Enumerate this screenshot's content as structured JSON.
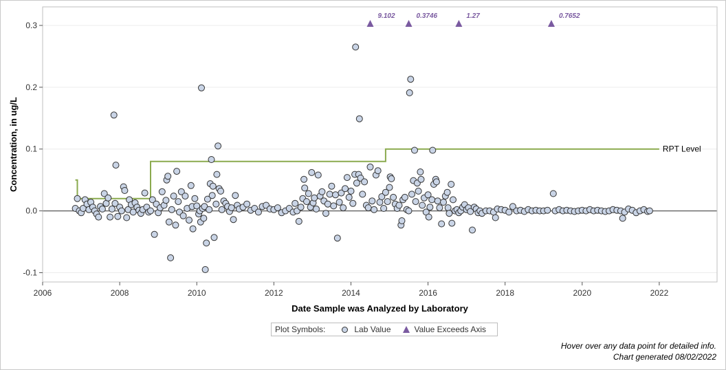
{
  "chart_data": {
    "type": "scatter",
    "xlabel": "Date Sample was Analyzed by Laboratory",
    "ylabel": "Concentration, in ug/L",
    "xlim": [
      2006,
      2023.5
    ],
    "ylim": [
      -0.115,
      0.33
    ],
    "x_ticks": [
      "2006",
      "2008",
      "2010",
      "2012",
      "2014",
      "2016",
      "2018",
      "2020",
      "2022"
    ],
    "y_ticks": [
      "0.3",
      "0.2",
      "0.1",
      "0.0",
      "-0.1"
    ],
    "grid": "horizontal",
    "reference_line": {
      "label": "RPT Level",
      "color": "#8aaa4e",
      "steps": [
        [
          2006.85,
          0.05
        ],
        [
          2006.9,
          0.02
        ],
        [
          2008.8,
          0.08
        ],
        [
          2014.9,
          0.1
        ],
        [
          2022.0,
          0.1
        ]
      ]
    },
    "exceeds_axis": {
      "color": "#7a5aa0",
      "points": [
        {
          "x": 2014.5,
          "label": "9.102"
        },
        {
          "x": 2015.5,
          "label": "0.3746"
        },
        {
          "x": 2016.8,
          "label": "1.27"
        },
        {
          "x": 2019.2,
          "label": "0.7652"
        }
      ]
    },
    "series": [
      {
        "marker_fill": "#c9d4e6",
        "marker_edge": "#333333",
        "points": [
          [
            2006.85,
            0.004
          ],
          [
            2006.9,
            0.02
          ],
          [
            2006.95,
            0.0
          ],
          [
            2007.0,
            -0.003
          ],
          [
            2007.05,
            0.004
          ],
          [
            2007.1,
            0.018
          ],
          [
            2007.15,
            0.011
          ],
          [
            2007.2,
            0.002
          ],
          [
            2007.25,
            0.014
          ],
          [
            2007.3,
            0.006
          ],
          [
            2007.35,
            0.0
          ],
          [
            2007.4,
            -0.005
          ],
          [
            2007.45,
            -0.01
          ],
          [
            2007.5,
            0.007
          ],
          [
            2007.55,
            0.003
          ],
          [
            2007.6,
            0.028
          ],
          [
            2007.65,
            0.012
          ],
          [
            2007.7,
            0.021
          ],
          [
            2007.75,
            -0.01
          ],
          [
            2007.8,
            0.003
          ],
          [
            2007.85,
            0.155
          ],
          [
            2007.88,
            0.012
          ],
          [
            2007.9,
            0.074
          ],
          [
            2007.95,
            -0.009
          ],
          [
            2008.0,
            0.006
          ],
          [
            2008.05,
            0.0
          ],
          [
            2008.1,
            0.039
          ],
          [
            2008.13,
            0.033
          ],
          [
            2008.18,
            -0.011
          ],
          [
            2008.22,
            0.002
          ],
          [
            2008.25,
            0.018
          ],
          [
            2008.3,
            0.01
          ],
          [
            2008.35,
            -0.002
          ],
          [
            2008.4,
            0.013
          ],
          [
            2008.45,
            0.006
          ],
          [
            2008.5,
            0.001
          ],
          [
            2008.55,
            -0.004
          ],
          [
            2008.6,
            0.002
          ],
          [
            2008.65,
            0.029
          ],
          [
            2008.7,
            0.006
          ],
          [
            2008.75,
            -0.002
          ],
          [
            2008.8,
            0.0
          ],
          [
            2008.85,
            0.018
          ],
          [
            2008.9,
            -0.038
          ],
          [
            2008.95,
            0.011
          ],
          [
            2009.0,
            -0.003
          ],
          [
            2009.05,
            0.005
          ],
          [
            2009.1,
            0.031
          ],
          [
            2009.15,
            0.009
          ],
          [
            2009.2,
            0.017
          ],
          [
            2009.22,
            0.05
          ],
          [
            2009.25,
            0.056
          ],
          [
            2009.28,
            -0.018
          ],
          [
            2009.32,
            -0.076
          ],
          [
            2009.35,
            0.002
          ],
          [
            2009.4,
            0.024
          ],
          [
            2009.45,
            -0.023
          ],
          [
            2009.48,
            0.064
          ],
          [
            2009.52,
            0.015
          ],
          [
            2009.55,
            -0.002
          ],
          [
            2009.6,
            0.031
          ],
          [
            2009.65,
            -0.008
          ],
          [
            2009.7,
            0.024
          ],
          [
            2009.75,
            0.004
          ],
          [
            2009.8,
            -0.015
          ],
          [
            2009.85,
            0.041
          ],
          [
            2009.88,
            0.007
          ],
          [
            2009.9,
            -0.029
          ],
          [
            2009.95,
            0.02
          ],
          [
            2010.0,
            0.008
          ],
          [
            2010.05,
            -0.005
          ],
          [
            2010.08,
            0.0
          ],
          [
            2010.1,
            -0.018
          ],
          [
            2010.12,
            0.199
          ],
          [
            2010.15,
            0.004
          ],
          [
            2010.18,
            -0.012
          ],
          [
            2010.2,
            0.007
          ],
          [
            2010.22,
            -0.095
          ],
          [
            2010.25,
            -0.052
          ],
          [
            2010.28,
            0.019
          ],
          [
            2010.32,
            0.002
          ],
          [
            2010.35,
            0.044
          ],
          [
            2010.38,
            0.083
          ],
          [
            2010.4,
            0.025
          ],
          [
            2010.42,
            0.04
          ],
          [
            2010.45,
            -0.043
          ],
          [
            2010.5,
            0.011
          ],
          [
            2010.52,
            0.059
          ],
          [
            2010.55,
            0.105
          ],
          [
            2010.58,
            0.036
          ],
          [
            2010.62,
            0.032
          ],
          [
            2010.65,
            0.002
          ],
          [
            2010.7,
            0.016
          ],
          [
            2010.75,
            0.012
          ],
          [
            2010.8,
            0.007
          ],
          [
            2010.85,
            -0.001
          ],
          [
            2010.9,
            0.005
          ],
          [
            2010.95,
            -0.014
          ],
          [
            2011.0,
            0.025
          ],
          [
            2011.05,
            0.009
          ],
          [
            2011.1,
            0.003
          ],
          [
            2011.2,
            0.006
          ],
          [
            2011.3,
            0.011
          ],
          [
            2011.4,
            0.001
          ],
          [
            2011.5,
            0.004
          ],
          [
            2011.6,
            -0.002
          ],
          [
            2011.7,
            0.007
          ],
          [
            2011.8,
            0.009
          ],
          [
            2011.9,
            0.003
          ],
          [
            2012.0,
            0.002
          ],
          [
            2012.1,
            0.005
          ],
          [
            2012.2,
            -0.003
          ],
          [
            2012.3,
            0.0
          ],
          [
            2012.4,
            0.004
          ],
          [
            2012.5,
            -0.002
          ],
          [
            2012.55,
            0.012
          ],
          [
            2012.6,
            0.0
          ],
          [
            2012.65,
            -0.017
          ],
          [
            2012.7,
            0.006
          ],
          [
            2012.75,
            0.02
          ],
          [
            2012.78,
            0.051
          ],
          [
            2012.8,
            0.037
          ],
          [
            2012.85,
            0.015
          ],
          [
            2012.9,
            0.028
          ],
          [
            2012.95,
            0.006
          ],
          [
            2012.98,
            0.062
          ],
          [
            2013.02,
            0.013
          ],
          [
            2013.05,
            0.021
          ],
          [
            2013.1,
            0.003
          ],
          [
            2013.15,
            0.058
          ],
          [
            2013.2,
            0.024
          ],
          [
            2013.25,
            0.031
          ],
          [
            2013.3,
            0.016
          ],
          [
            2013.35,
            -0.004
          ],
          [
            2013.4,
            0.011
          ],
          [
            2013.45,
            0.027
          ],
          [
            2013.5,
            0.04
          ],
          [
            2013.55,
            0.008
          ],
          [
            2013.6,
            0.026
          ],
          [
            2013.65,
            -0.044
          ],
          [
            2013.7,
            0.014
          ],
          [
            2013.75,
            0.029
          ],
          [
            2013.8,
            0.005
          ],
          [
            2013.85,
            0.036
          ],
          [
            2013.9,
            0.054
          ],
          [
            2013.95,
            0.022
          ],
          [
            2014.0,
            0.032
          ],
          [
            2014.05,
            0.012
          ],
          [
            2014.1,
            0.059
          ],
          [
            2014.12,
            0.265
          ],
          [
            2014.15,
            0.045
          ],
          [
            2014.2,
            0.059
          ],
          [
            2014.22,
            0.149
          ],
          [
            2014.25,
            0.053
          ],
          [
            2014.3,
            0.027
          ],
          [
            2014.35,
            0.047
          ],
          [
            2014.4,
            0.009
          ],
          [
            2014.45,
            0.005
          ],
          [
            2014.5,
            0.071
          ],
          [
            2014.55,
            0.016
          ],
          [
            2014.6,
            0.002
          ],
          [
            2014.65,
            0.058
          ],
          [
            2014.7,
            0.065
          ],
          [
            2014.75,
            0.014
          ],
          [
            2014.8,
            0.023
          ],
          [
            2014.85,
            0.004
          ],
          [
            2014.9,
            0.03
          ],
          [
            2014.95,
            0.015
          ],
          [
            2015.0,
            0.038
          ],
          [
            2015.02,
            0.055
          ],
          [
            2015.05,
            0.052
          ],
          [
            2015.1,
            0.022
          ],
          [
            2015.15,
            0.011
          ],
          [
            2015.2,
            0.004
          ],
          [
            2015.25,
            0.009
          ],
          [
            2015.3,
            -0.023
          ],
          [
            2015.32,
            -0.016
          ],
          [
            2015.35,
            0.018
          ],
          [
            2015.4,
            0.022
          ],
          [
            2015.45,
            0.002
          ],
          [
            2015.5,
            0.0
          ],
          [
            2015.52,
            0.191
          ],
          [
            2015.55,
            0.213
          ],
          [
            2015.58,
            0.027
          ],
          [
            2015.62,
            0.049
          ],
          [
            2015.65,
            0.098
          ],
          [
            2015.68,
            0.015
          ],
          [
            2015.72,
            0.045
          ],
          [
            2015.75,
            0.032
          ],
          [
            2015.8,
            0.063
          ],
          [
            2015.82,
            0.051
          ],
          [
            2015.85,
            0.009
          ],
          [
            2015.9,
            0.021
          ],
          [
            2015.95,
            -0.002
          ],
          [
            2016.0,
            0.026
          ],
          [
            2016.02,
            -0.01
          ],
          [
            2016.05,
            0.006
          ],
          [
            2016.1,
            0.018
          ],
          [
            2016.12,
            0.098
          ],
          [
            2016.15,
            0.043
          ],
          [
            2016.2,
            0.051
          ],
          [
            2016.22,
            0.047
          ],
          [
            2016.25,
            0.016
          ],
          [
            2016.3,
            0.005
          ],
          [
            2016.35,
            -0.021
          ],
          [
            2016.4,
            0.014
          ],
          [
            2016.45,
            0.024
          ],
          [
            2016.5,
            0.03
          ],
          [
            2016.52,
            0.005
          ],
          [
            2016.55,
            -0.004
          ],
          [
            2016.6,
            0.043
          ],
          [
            2016.62,
            -0.02
          ],
          [
            2016.65,
            0.018
          ],
          [
            2016.7,
            0.0
          ],
          [
            2016.75,
            0.002
          ],
          [
            2016.8,
            -0.003
          ],
          [
            2016.85,
            0.0
          ],
          [
            2016.9,
            0.006
          ],
          [
            2016.95,
            0.01
          ],
          [
            2017.0,
            0.002
          ],
          [
            2017.05,
            0.005
          ],
          [
            2017.1,
            -0.001
          ],
          [
            2017.15,
            -0.031
          ],
          [
            2017.2,
            0.006
          ],
          [
            2017.25,
            0.003
          ],
          [
            2017.3,
            -0.003
          ],
          [
            2017.35,
            0.0
          ],
          [
            2017.4,
            -0.004
          ],
          [
            2017.5,
            0.0
          ],
          [
            2017.6,
            0.0
          ],
          [
            2017.7,
            -0.002
          ],
          [
            2017.75,
            -0.011
          ],
          [
            2017.8,
            0.003
          ],
          [
            2017.9,
            0.002
          ],
          [
            2018.0,
            0.001
          ],
          [
            2018.1,
            -0.002
          ],
          [
            2018.2,
            0.007
          ],
          [
            2018.3,
            0.0
          ],
          [
            2018.4,
            0.001
          ],
          [
            2018.5,
            -0.001
          ],
          [
            2018.6,
            0.002
          ],
          [
            2018.7,
            0.0
          ],
          [
            2018.8,
            0.001
          ],
          [
            2018.9,
            0.0
          ],
          [
            2019.0,
            0.0
          ],
          [
            2019.1,
            0.001
          ],
          [
            2019.25,
            0.028
          ],
          [
            2019.3,
            0.0
          ],
          [
            2019.4,
            0.002
          ],
          [
            2019.5,
            0.0
          ],
          [
            2019.6,
            0.001
          ],
          [
            2019.7,
            0.0
          ],
          [
            2019.8,
            -0.001
          ],
          [
            2019.9,
            0.0
          ],
          [
            2020.0,
            0.001
          ],
          [
            2020.1,
            0.0
          ],
          [
            2020.2,
            0.002
          ],
          [
            2020.3,
            0.0
          ],
          [
            2020.4,
            0.001
          ],
          [
            2020.5,
            0.0
          ],
          [
            2020.6,
            -0.001
          ],
          [
            2020.7,
            0.0
          ],
          [
            2020.8,
            0.002
          ],
          [
            2020.9,
            0.001
          ],
          [
            2021.0,
            0.0
          ],
          [
            2021.05,
            -0.012
          ],
          [
            2021.1,
            -0.002
          ],
          [
            2021.2,
            0.003
          ],
          [
            2021.3,
            0.001
          ],
          [
            2021.4,
            -0.003
          ],
          [
            2021.5,
            0.0
          ],
          [
            2021.6,
            0.002
          ],
          [
            2021.7,
            -0.001
          ],
          [
            2021.75,
            0.0
          ]
        ]
      }
    ]
  },
  "legend": {
    "title": "Plot Symbols:",
    "lab_value_label": "Lab Value",
    "exceeds_label": "Value Exceeds Axis"
  },
  "footer": {
    "hover_note": "Hover over any data point for detailed info.",
    "generated": "Chart generated 08/02/2022"
  }
}
